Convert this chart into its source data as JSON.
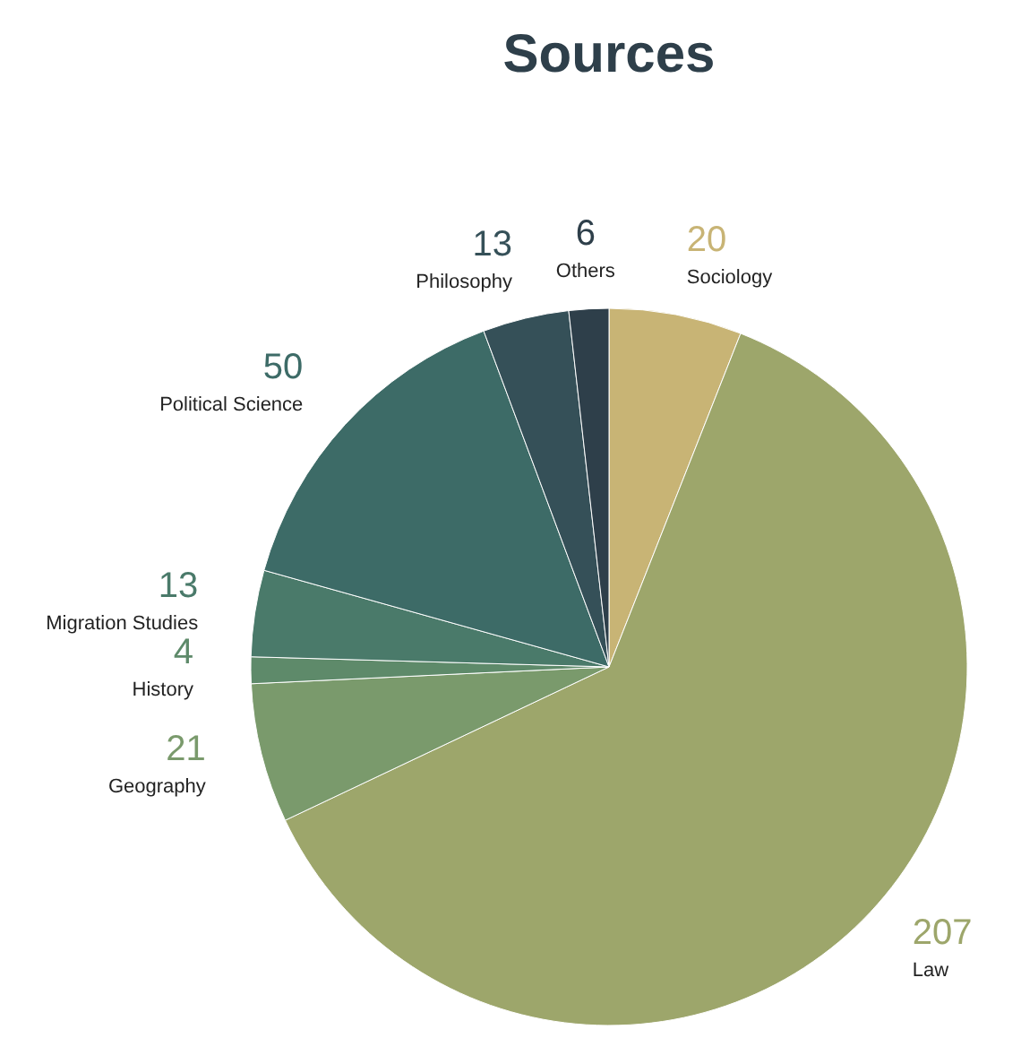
{
  "chart_data": {
    "type": "pie",
    "title": "Sources",
    "categories": [
      "Sociology",
      "Law",
      "Geography",
      "History",
      "Migration Studies",
      "Political Science",
      "Philosophy",
      "Others"
    ],
    "values": [
      20,
      207,
      21,
      4,
      13,
      50,
      13,
      6
    ],
    "colors": [
      "#c8b475",
      "#9da66b",
      "#7a9a6c",
      "#5e8a6a",
      "#4a7a6a",
      "#3d6b67",
      "#355058",
      "#2e3f4a"
    ],
    "data_labels": true
  }
}
